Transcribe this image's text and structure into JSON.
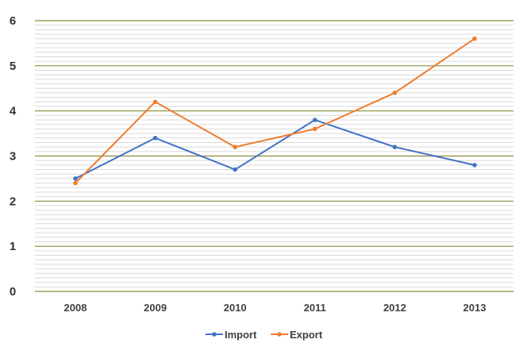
{
  "chart_data": {
    "type": "line",
    "categories": [
      "2008",
      "2009",
      "2010",
      "2011",
      "2012",
      "2013"
    ],
    "series": [
      {
        "name": "Import",
        "values": [
          2.5,
          3.4,
          2.7,
          3.8,
          3.2,
          2.8
        ],
        "color": "#4472C4"
      },
      {
        "name": "Export",
        "values": [
          2.4,
          4.2,
          3.2,
          3.6,
          4.4,
          5.6
        ],
        "color": "#ED7D31"
      }
    ],
    "ylim": [
      0,
      6
    ],
    "y_ticks": [
      "0",
      "1",
      "2",
      "3",
      "4",
      "5",
      "6"
    ],
    "grid": true,
    "major_grid_color": "#8B8B3A",
    "minor_grid_color": "#D9D9D9",
    "legend_position": "bottom"
  }
}
